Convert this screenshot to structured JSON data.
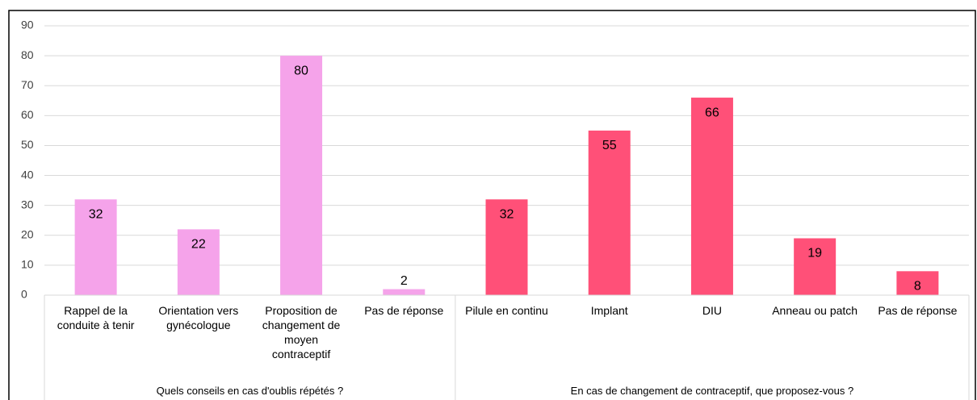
{
  "chart_data": {
    "type": "bar",
    "groups": [
      {
        "name": "Quels conseils en cas d'oublis répétés ?",
        "color": "#f5a3ea",
        "categories": [
          "Rappel de la conduite à tenir",
          "Orientation vers gynécologue",
          "Proposition de changement de moyen contraceptif",
          "Pas de réponse"
        ],
        "values": [
          32,
          22,
          80,
          2
        ]
      },
      {
        "name": "En cas de changement de contraceptif, que proposez-vous ?",
        "color": "#ff5078",
        "categories": [
          "Pilule en continu",
          "Implant",
          "DIU",
          "Anneau ou patch",
          "Pas de réponse"
        ],
        "values": [
          32,
          55,
          66,
          19,
          8
        ]
      }
    ],
    "ylim": [
      0,
      90
    ],
    "yticks": [
      0,
      10,
      20,
      30,
      40,
      50,
      60,
      70,
      80,
      90
    ],
    "grid": true
  }
}
